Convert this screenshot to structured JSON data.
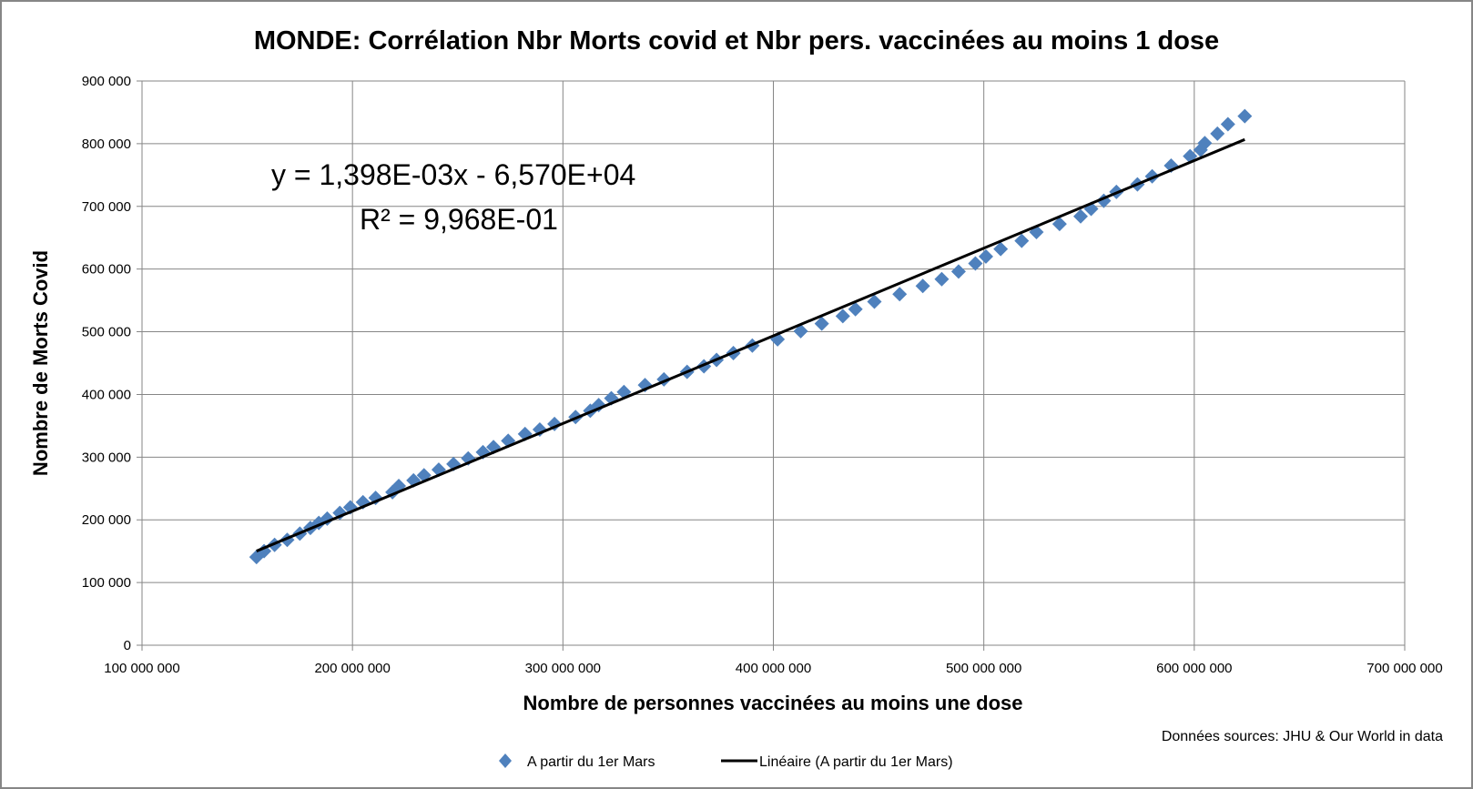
{
  "chart_data": {
    "type": "scatter",
    "title": "MONDE: Corrélation Nbr Morts covid et Nbr pers. vaccinées au moins 1 dose",
    "xlabel": "Nombre de personnes vaccinées au moins une dose",
    "ylabel": "Nombre de  Morts Covid",
    "xlim": [
      100000000,
      700000000
    ],
    "ylim": [
      0,
      900000
    ],
    "x_ticks": [
      "100 000 000",
      "200 000 000",
      "300 000 000",
      "400 000 000",
      "500 000 000",
      "600 000 000",
      "700 000 000"
    ],
    "y_ticks": [
      "0",
      "100 000",
      "200 000",
      "300 000",
      "400 000",
      "500 000",
      "600 000",
      "700 000",
      "800 000",
      "900 000"
    ],
    "grid": true,
    "legend_position": "bottom",
    "series": [
      {
        "name": "A partir du 1er Mars",
        "marker": "diamond",
        "color": "#4F81BD",
        "x": [
          154.4,
          158,
          163,
          169,
          175,
          180,
          184,
          188,
          194,
          199,
          205,
          211,
          219,
          222,
          229,
          234,
          241,
          248,
          255,
          262,
          267,
          274,
          282,
          289,
          296,
          306,
          313,
          317,
          323,
          329,
          339,
          348,
          359,
          367,
          373,
          381,
          390,
          402,
          413,
          423,
          433,
          439,
          448,
          460,
          471,
          480,
          488,
          496,
          501,
          508,
          518,
          525,
          536,
          546,
          551,
          557,
          563,
          573,
          580,
          589,
          598,
          603,
          605,
          611,
          616,
          624
        ],
        "y": [
          140.7,
          150,
          160,
          168,
          178,
          187,
          195,
          202,
          211,
          220,
          228,
          235,
          244,
          254,
          263,
          271,
          280,
          289,
          298,
          308,
          316,
          326,
          337,
          344,
          353,
          364,
          374,
          383,
          394,
          404,
          415,
          424,
          436,
          445,
          455,
          466,
          478,
          488,
          501,
          513,
          525,
          536,
          548,
          560,
          573,
          584,
          596,
          609,
          620,
          632,
          645,
          659,
          672,
          684,
          696,
          709,
          723,
          735,
          748,
          765,
          780,
          790,
          801,
          816,
          831,
          844
        ],
        "x_unit_multiplier": 1000000,
        "y_unit_multiplier": 1000
      }
    ],
    "trendline": {
      "name": "Linéaire (A partir du 1er Mars)",
      "type": "linear",
      "slope": 0.001398,
      "intercept": -65700,
      "color": "#000000",
      "equation_label": "y = 1,398E-03x - 6,570E+04",
      "r2_label": "R² = 9,968E-01"
    },
    "source_note": "Données sources: JHU & Our World in data"
  }
}
